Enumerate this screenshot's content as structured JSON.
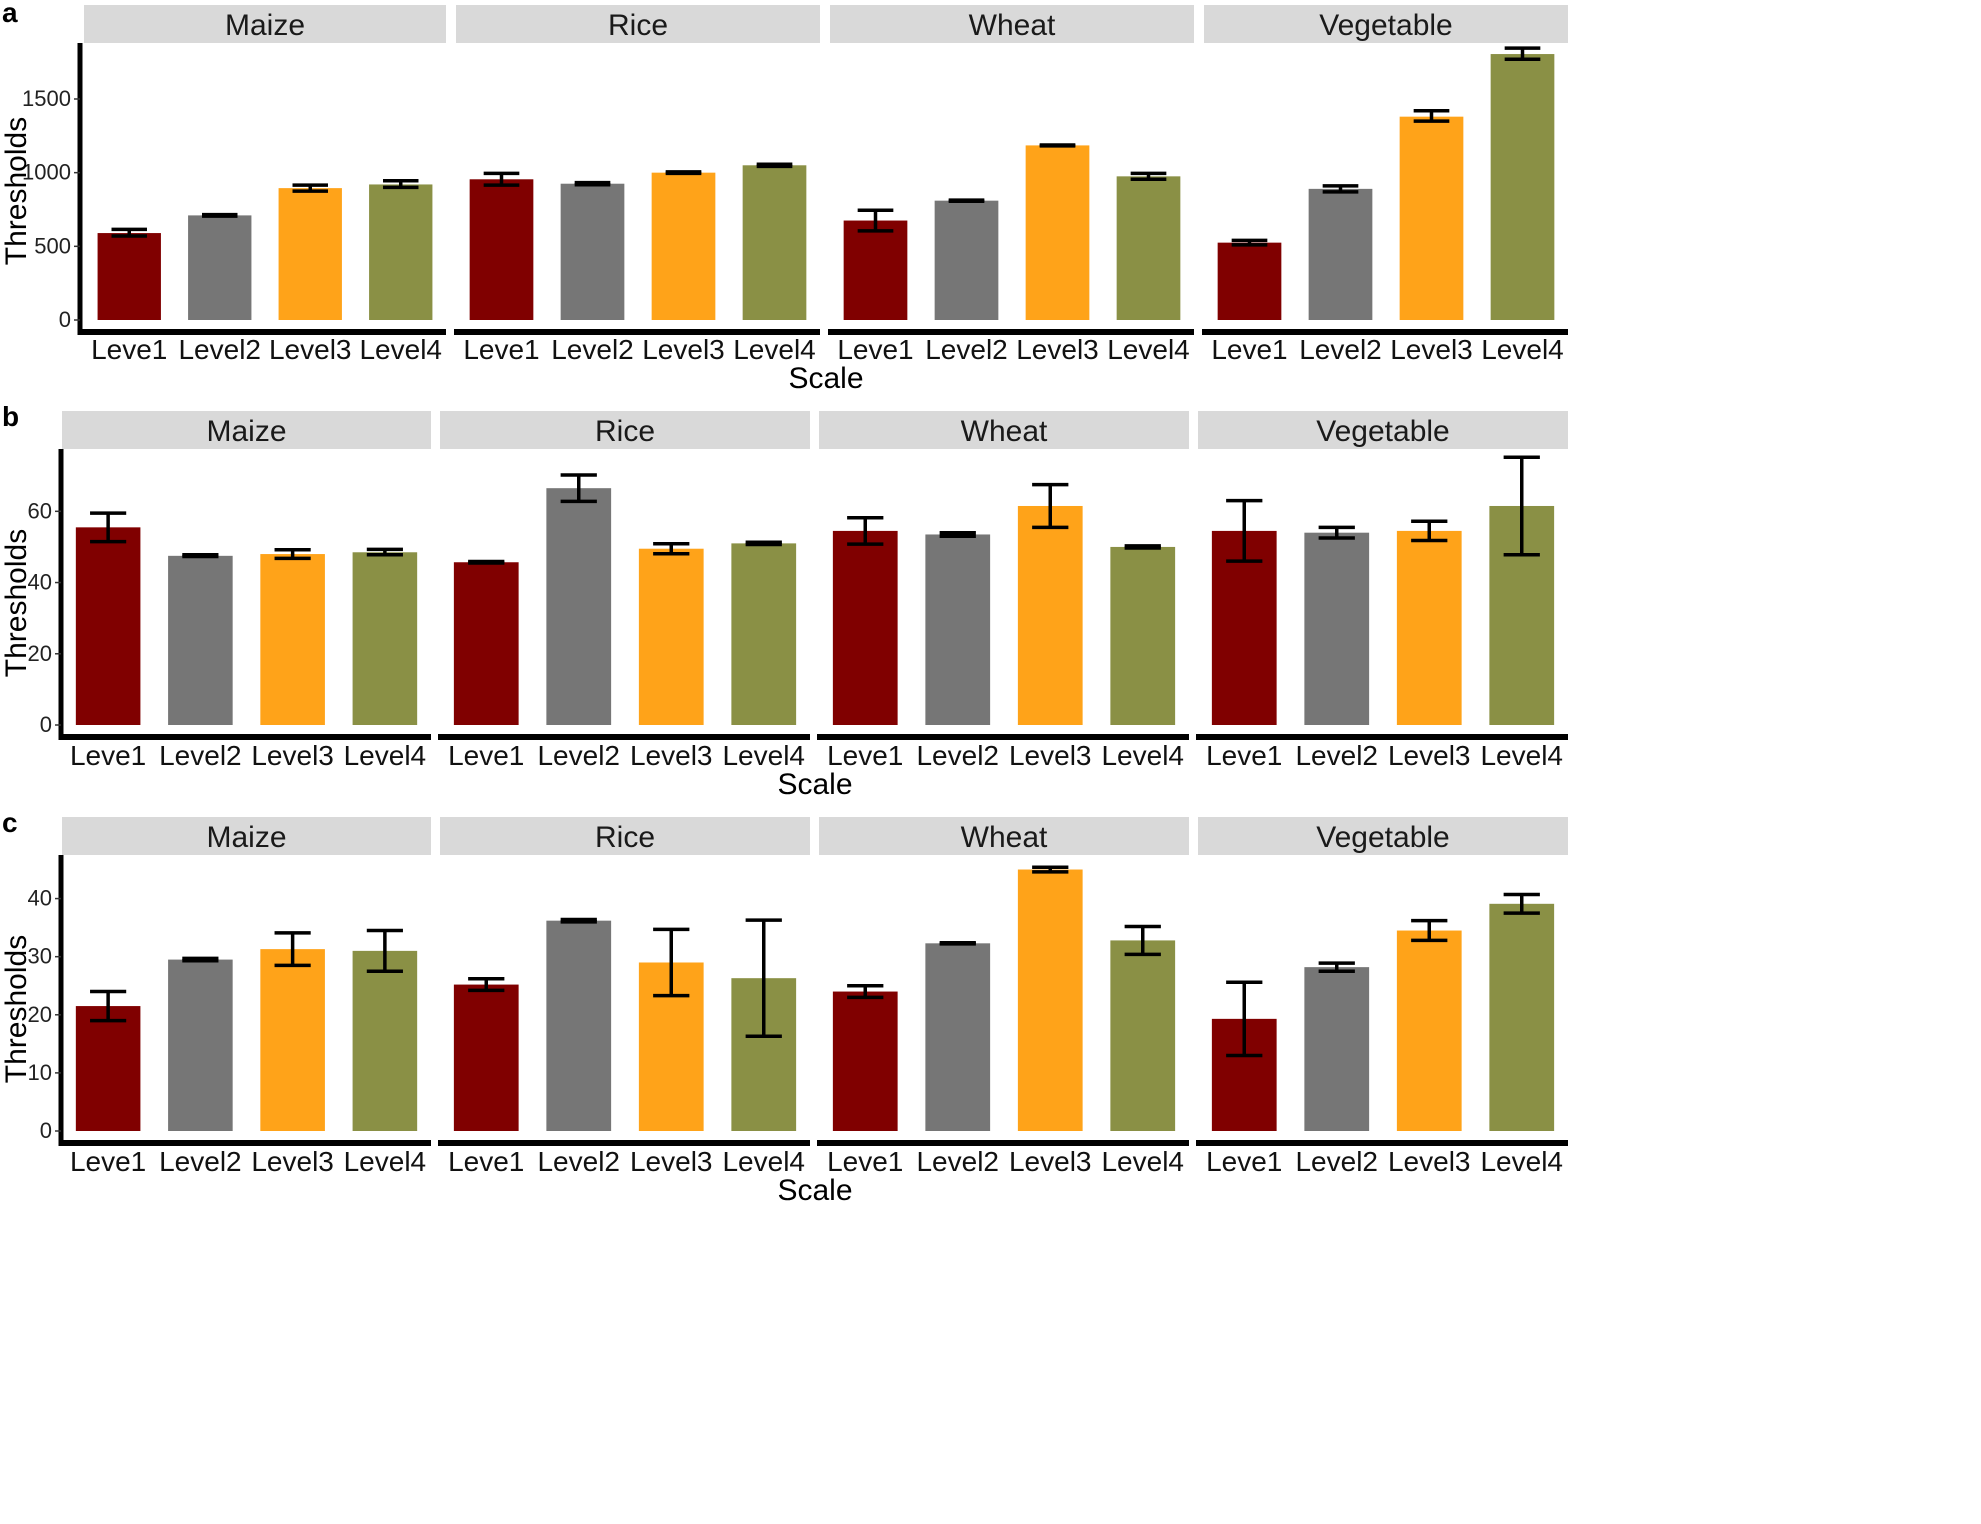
{
  "chart_data": [
    {
      "panel": "a",
      "type": "bar",
      "xlabel": "Scale",
      "ylabel": "Thresholds",
      "yticks": [
        0,
        500,
        1000,
        1500
      ],
      "ylim": [
        0,
        1880
      ],
      "facets": [
        {
          "name": "Maize",
          "categories": [
            "Leve1",
            "Level2",
            "Level3",
            "Level4"
          ],
          "values": [
            590,
            710,
            895,
            920
          ],
          "err_low": [
            570,
            705,
            875,
            900
          ],
          "err_high": [
            615,
            715,
            915,
            945
          ]
        },
        {
          "name": "Rice",
          "categories": [
            "Leve1",
            "Level2",
            "Level3",
            "Level4"
          ],
          "values": [
            955,
            925,
            1000,
            1050
          ],
          "err_low": [
            915,
            918,
            995,
            1043
          ],
          "err_high": [
            995,
            932,
            1005,
            1057
          ]
        },
        {
          "name": "Wheat",
          "categories": [
            "Leve1",
            "Level2",
            "Level3",
            "Level4"
          ],
          "values": [
            675,
            810,
            1185,
            975
          ],
          "err_low": [
            605,
            806,
            1182,
            955
          ],
          "err_high": [
            745,
            814,
            1188,
            995
          ]
        },
        {
          "name": "Vegetable",
          "categories": [
            "Leve1",
            "Level2",
            "Level3",
            "Level4"
          ],
          "values": [
            525,
            890,
            1380,
            1805
          ],
          "err_low": [
            510,
            870,
            1350,
            1770
          ],
          "err_high": [
            540,
            910,
            1420,
            1845
          ]
        }
      ]
    },
    {
      "panel": "b",
      "type": "bar",
      "xlabel": "Scale",
      "ylabel": "Thresholds",
      "yticks": [
        0,
        20,
        40,
        60
      ],
      "ylim": [
        0,
        77.5
      ],
      "facets": [
        {
          "name": "Maize",
          "categories": [
            "Leve1",
            "Level2",
            "Level3",
            "Level4"
          ],
          "values": [
            55.5,
            47.5,
            48,
            48.5
          ],
          "err_low": [
            51.5,
            47.3,
            46.8,
            47.8
          ],
          "err_high": [
            59.5,
            47.8,
            49.2,
            49.3
          ]
        },
        {
          "name": "Rice",
          "categories": [
            "Leve1",
            "Level2",
            "Level3",
            "Level4"
          ],
          "values": [
            45.7,
            66.5,
            49.5,
            51
          ],
          "err_low": [
            45.5,
            62.8,
            48.1,
            50.7
          ],
          "err_high": [
            45.9,
            70.2,
            50.9,
            51.3
          ]
        },
        {
          "name": "Wheat",
          "categories": [
            "Leve1",
            "Level2",
            "Level3",
            "Level4"
          ],
          "values": [
            54.5,
            53.5,
            61.5,
            50
          ],
          "err_low": [
            50.8,
            53,
            55.5,
            49.7
          ],
          "err_high": [
            58.2,
            54,
            67.5,
            50.3
          ]
        },
        {
          "name": "Vegetable",
          "categories": [
            "Leve1",
            "Level2",
            "Level3",
            "Level4"
          ],
          "values": [
            54.5,
            54,
            54.5,
            61.5
          ],
          "err_low": [
            46,
            52.5,
            51.8,
            47.8
          ],
          "err_high": [
            63,
            55.5,
            57.2,
            75.2
          ]
        }
      ]
    },
    {
      "panel": "c",
      "type": "bar",
      "xlabel": "Scale",
      "ylabel": "Thresholds",
      "yticks": [
        0,
        10,
        20,
        30,
        40
      ],
      "ylim": [
        0,
        47.5
      ],
      "facets": [
        {
          "name": "Maize",
          "categories": [
            "Leve1",
            "Level2",
            "Level3",
            "Level4"
          ],
          "values": [
            21.5,
            29.5,
            31.3,
            31
          ],
          "err_low": [
            19,
            29.3,
            28.5,
            27.5
          ],
          "err_high": [
            24,
            29.7,
            34.1,
            34.5
          ]
        },
        {
          "name": "Rice",
          "categories": [
            "Leve1",
            "Level2",
            "Level3",
            "Level4"
          ],
          "values": [
            25.2,
            36.2,
            29,
            26.3
          ],
          "err_low": [
            24.2,
            36,
            23.3,
            16.3
          ],
          "err_high": [
            26.2,
            36.4,
            34.7,
            36.3
          ]
        },
        {
          "name": "Wheat",
          "categories": [
            "Leve1",
            "Level2",
            "Level3",
            "Level4"
          ],
          "values": [
            24,
            32.3,
            45,
            32.8
          ],
          "err_low": [
            23,
            32.2,
            44.6,
            30.4
          ],
          "err_high": [
            25,
            32.4,
            45.4,
            35.2
          ]
        },
        {
          "name": "Vegetable",
          "categories": [
            "Leve1",
            "Level2",
            "Level3",
            "Level4"
          ],
          "values": [
            19.3,
            28.2,
            34.5,
            39.1
          ],
          "err_low": [
            13,
            27.5,
            32.8,
            37.5
          ],
          "err_high": [
            25.6,
            28.9,
            36.2,
            40.7
          ]
        }
      ]
    }
  ],
  "colors": {
    "level1": "#800000",
    "level2": "#767676",
    "level3": "#FFA319",
    "level4": "#8A9045",
    "strip_bg": "#D9D9D9"
  }
}
